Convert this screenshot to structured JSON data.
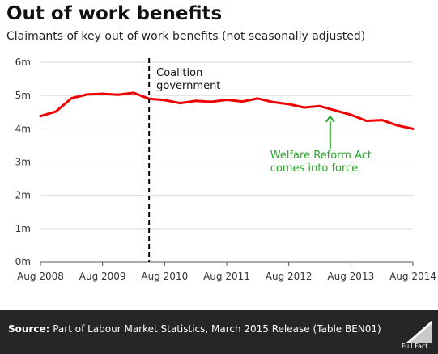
{
  "title": "Out of work benefits",
  "subtitle": "Claimants of key out of work benefits (not seasonally adjusted)",
  "chart_data": {
    "type": "line",
    "x_ticks": [
      "Aug 2008",
      "Aug 2009",
      "Aug 2010",
      "Aug 2011",
      "Aug 2012",
      "Aug 2013",
      "Aug 2014"
    ],
    "y_ticks": [
      "0m",
      "1m",
      "2m",
      "3m",
      "4m",
      "5m",
      "6m"
    ],
    "ylim": [
      0,
      6
    ],
    "xlim": [
      "2008-08",
      "2014-08"
    ],
    "grid": true,
    "series": [
      {
        "color": "#ee0000",
        "x": [
          "2008-08",
          "2008-11",
          "2009-02",
          "2009-05",
          "2009-08",
          "2009-11",
          "2010-02",
          "2010-05",
          "2010-08",
          "2010-11",
          "2011-02",
          "2011-05",
          "2011-08",
          "2011-11",
          "2012-02",
          "2012-05",
          "2012-08",
          "2012-11",
          "2013-02",
          "2013-05",
          "2013-08",
          "2013-11",
          "2014-02",
          "2014-05",
          "2014-08"
        ],
        "values": [
          4.38,
          4.52,
          4.92,
          5.03,
          5.05,
          5.02,
          5.08,
          4.9,
          4.86,
          4.77,
          4.84,
          4.81,
          4.87,
          4.82,
          4.91,
          4.8,
          4.74,
          4.64,
          4.68,
          4.55,
          4.42,
          4.24,
          4.26,
          4.1,
          4.0
        ]
      }
    ],
    "annotations": [
      {
        "text": "Coalition government",
        "x": "2010-05",
        "style": "dashed-vertical-line",
        "color": "#000000"
      },
      {
        "text": "Welfare Reform Act comes into force",
        "x": "2013-04",
        "value": 4.52,
        "style": "arrow",
        "color": "#22aa22"
      }
    ]
  },
  "footer": {
    "source_label": "Source:",
    "source_text": " Part of Labour Market Statistics, March 2015 Release (Table BEN01)",
    "logo_text": "Full Fact"
  }
}
